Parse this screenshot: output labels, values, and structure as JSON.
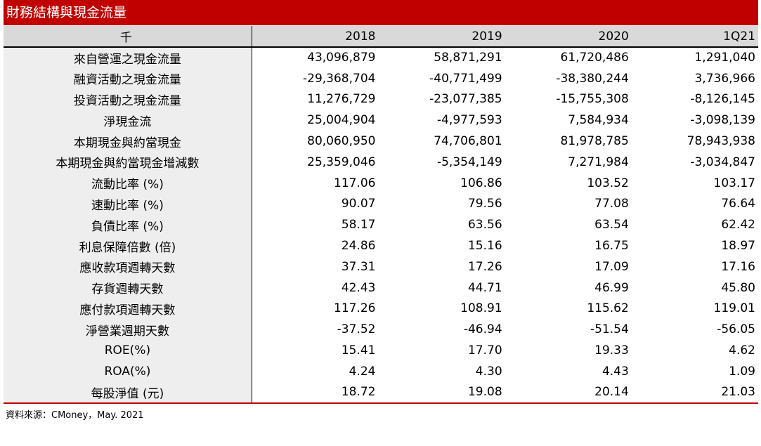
{
  "title": "財務結構與現金流量",
  "header": {
    "label": "千",
    "columns": [
      "2018",
      "2019",
      "2020",
      "1Q21"
    ]
  },
  "rows": [
    {
      "label": "來自營運之現金流量",
      "values": [
        "43,096,879",
        "58,871,291",
        "61,720,486",
        "1,291,040"
      ]
    },
    {
      "label": "融資活動之現金流量",
      "values": [
        "-29,368,704",
        "-40,771,499",
        "-38,380,244",
        "3,736,966"
      ]
    },
    {
      "label": "投資活動之現金流量",
      "values": [
        "11,276,729",
        "-23,077,385",
        "-15,755,308",
        "-8,126,145"
      ]
    },
    {
      "label": "淨現金流",
      "values": [
        "25,004,904",
        "-4,977,593",
        "7,584,934",
        "-3,098,139"
      ]
    },
    {
      "label": "本期現金與約當現金",
      "values": [
        "80,060,950",
        "74,706,801",
        "81,978,785",
        "78,943,938"
      ]
    },
    {
      "label": "本期現金與約當現金增減數",
      "values": [
        "25,359,046",
        "-5,354,149",
        "7,271,984",
        "-3,034,847"
      ]
    },
    {
      "label": "流動比率 (%)",
      "values": [
        "117.06",
        "106.86",
        "103.52",
        "103.17"
      ]
    },
    {
      "label": "速動比率 (%)",
      "values": [
        "90.07",
        "79.56",
        "77.08",
        "76.64"
      ]
    },
    {
      "label": "負債比率 (%)",
      "values": [
        "58.17",
        "63.56",
        "63.54",
        "62.42"
      ]
    },
    {
      "label": "利息保障倍數 (倍)",
      "values": [
        "24.86",
        "15.16",
        "16.75",
        "18.97"
      ]
    },
    {
      "label": "應收款項週轉天數",
      "values": [
        "37.31",
        "17.26",
        "17.09",
        "17.16"
      ]
    },
    {
      "label": "存貨週轉天數",
      "values": [
        "42.43",
        "44.71",
        "46.99",
        "45.80"
      ]
    },
    {
      "label": "應付款項週轉天數",
      "values": [
        "117.26",
        "108.91",
        "115.62",
        "119.01"
      ]
    },
    {
      "label": "淨營業週期天數",
      "values": [
        "-37.52",
        "-46.94",
        "-51.54",
        "-56.05"
      ]
    },
    {
      "label": "ROE(%)",
      "values": [
        "15.41",
        "17.70",
        "19.33",
        "4.62"
      ]
    },
    {
      "label": "ROA(%)",
      "values": [
        "4.24",
        "4.30",
        "4.43",
        "1.09"
      ]
    },
    {
      "label": "每股淨值 (元)",
      "values": [
        "18.72",
        "19.08",
        "20.14",
        "21.03"
      ]
    }
  ],
  "source": "資料來源：CMoney，May. 2021",
  "colors": {
    "title_bg": "#c00000",
    "header_bg": "#d9d9d9",
    "label_bg": "#eeeeee"
  }
}
